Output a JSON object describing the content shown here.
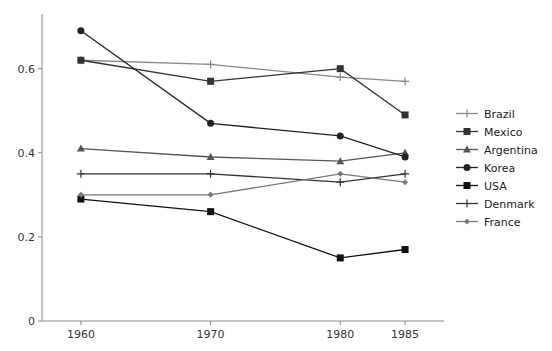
{
  "chart_data": {
    "type": "line",
    "x": [
      1960,
      1970,
      1980,
      1985
    ],
    "series": [
      {
        "name": "Brazil",
        "color": "#888888",
        "marker": "plus",
        "values": [
          0.62,
          0.61,
          0.58,
          0.57
        ]
      },
      {
        "name": "Mexico",
        "color": "#333333",
        "marker": "square",
        "values": [
          0.62,
          0.57,
          0.6,
          0.49
        ]
      },
      {
        "name": "Argentina",
        "color": "#555555",
        "marker": "triangle",
        "values": [
          0.41,
          0.39,
          0.38,
          0.4
        ]
      },
      {
        "name": "Korea",
        "color": "#222222",
        "marker": "circle",
        "values": [
          0.69,
          0.47,
          0.44,
          0.39
        ]
      },
      {
        "name": "USA",
        "color": "#111111",
        "marker": "square",
        "values": [
          0.29,
          0.26,
          0.15,
          0.17
        ]
      },
      {
        "name": "Denmark",
        "color": "#333333",
        "marker": "plus",
        "values": [
          0.35,
          0.35,
          0.33,
          0.35
        ]
      },
      {
        "name": "France",
        "color": "#777777",
        "marker": "diamond",
        "values": [
          0.3,
          0.3,
          0.35,
          0.33
        ]
      }
    ],
    "xlim": [
      1957,
      1988
    ],
    "ylim": [
      0,
      0.73
    ],
    "xticks": [
      1960,
      1970,
      1980,
      1985
    ],
    "yticks": [
      0,
      0.2,
      0.4,
      0.6
    ],
    "grid": false,
    "legend": "right"
  }
}
